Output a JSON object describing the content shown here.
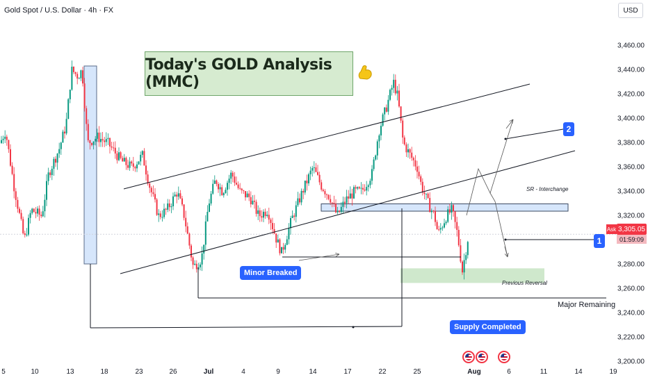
{
  "header": {
    "title": "Gold Spot / U.S. Dollar · 4h · FX",
    "currency": "USD"
  },
  "chart_data": {
    "type": "candlestick",
    "symbol": "Gold Spot / U.S. Dollar",
    "timeframe": "4h",
    "ylim": [
      3195,
      3485
    ],
    "y_ticks": [
      "3,200.00",
      "3,220.00",
      "3,240.00",
      "3,260.00",
      "3,280.00",
      "3,300.00",
      "3,320.00",
      "3,340.00",
      "3,360.00",
      "3,380.00",
      "3,400.00",
      "3,420.00",
      "3,440.00",
      "3,460.00"
    ],
    "x_ticks": [
      {
        "label": "5",
        "bold": false
      },
      {
        "label": "10",
        "bold": false
      },
      {
        "label": "13",
        "bold": false
      },
      {
        "label": "18",
        "bold": false
      },
      {
        "label": "23",
        "bold": false
      },
      {
        "label": "26",
        "bold": false
      },
      {
        "label": "Jul",
        "bold": true
      },
      {
        "label": "4",
        "bold": false
      },
      {
        "label": "9",
        "bold": false
      },
      {
        "label": "14",
        "bold": false
      },
      {
        "label": "17",
        "bold": false
      },
      {
        "label": "22",
        "bold": false
      },
      {
        "label": "25",
        "bold": false
      },
      {
        "label": "Aug",
        "bold": true
      },
      {
        "label": "6",
        "bold": false
      },
      {
        "label": "11",
        "bold": false
      },
      {
        "label": "14",
        "bold": false
      },
      {
        "label": "19",
        "bold": false
      }
    ],
    "last_price": "3,305.05",
    "countdown": "01:59:09",
    "ask_label": "Ask",
    "colors": {
      "up": "#089981",
      "down": "#f23645",
      "zone_blue": "#d6e6fb",
      "zone_green": "#cfe8cc",
      "callout": "#2962ff"
    },
    "annotations": {
      "headline": "Today's GOLD Analysis (MMC)",
      "minor_breaked": "Minor Breaked",
      "supply_completed": "Supply Completed",
      "sr_interchange": "SR - Interchange",
      "previous_reversal": "Previous Reversal",
      "major_remaining": "Major Remaining",
      "target_1": "1",
      "target_2": "2"
    },
    "levels": {
      "sr_zone": [
        3324,
        3330
      ],
      "demand_zone": [
        3265,
        3277
      ],
      "major_remaining": 3246,
      "supply_line": 3222,
      "minor_line": 3283,
      "target_1": 3295,
      "target_2": 3380
    }
  }
}
